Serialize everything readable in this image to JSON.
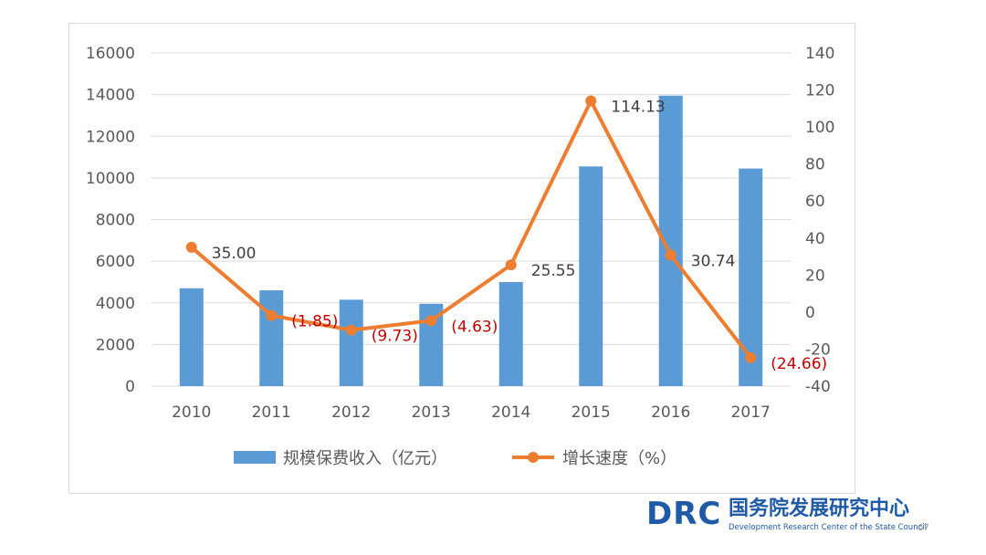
{
  "chart_data": {
    "type": "bar",
    "categories": [
      "2010",
      "2011",
      "2012",
      "2013",
      "2014",
      "2015",
      "2016",
      "2017"
    ],
    "series": [
      {
        "name": "规模保费收入（亿元）",
        "chart": "bar",
        "axis": "left",
        "color": "#5b9bd5",
        "values": [
          4700,
          4600,
          4150,
          3950,
          5000,
          10550,
          13950,
          10450
        ]
      },
      {
        "name": "增长速度（%）",
        "chart": "line",
        "axis": "right",
        "color": "#ed7d31",
        "values": [
          35.0,
          -1.85,
          -9.73,
          -4.63,
          25.55,
          114.13,
          30.74,
          -24.66
        ],
        "labels": [
          "35.00",
          "(1.85)",
          "(9.73)",
          "(4.63)",
          "25.55",
          "114.13",
          "30.74",
          "(24.66)"
        ],
        "label_colors": [
          "#404040",
          "#c00000",
          "#c00000",
          "#c00000",
          "#404040",
          "#404040",
          "#404040",
          "#c00000"
        ]
      }
    ],
    "y_left": {
      "min": 0,
      "max": 16000,
      "step": 2000,
      "ticks": [
        "0",
        "2000",
        "4000",
        "6000",
        "8000",
        "10000",
        "12000",
        "14000",
        "16000"
      ]
    },
    "y_right": {
      "min": -40,
      "max": 140,
      "step": 20,
      "ticks": [
        "-40",
        "-20",
        "0",
        "20",
        "40",
        "60",
        "80",
        "100",
        "120",
        "140"
      ]
    },
    "grid": true,
    "legend_position": "bottom"
  },
  "logo": {
    "mark": "DRC",
    "name_cn": "国务院发展研究中心",
    "name_en": "Development Research Center of the State Council"
  },
  "page_number": "67"
}
